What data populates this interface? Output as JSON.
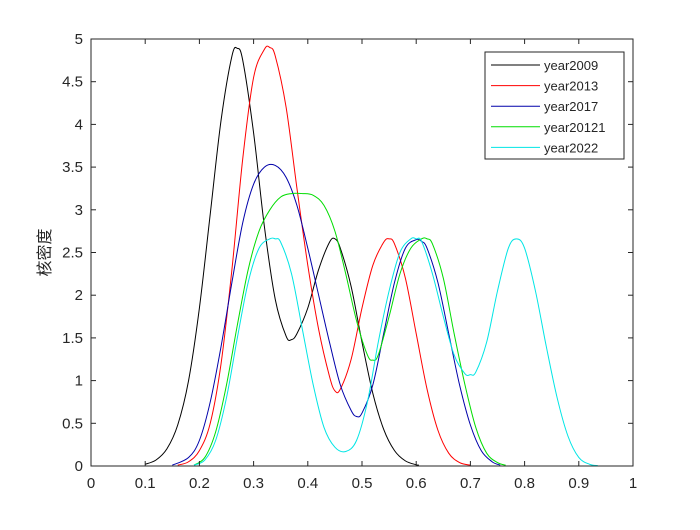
{
  "chart_data": {
    "type": "line",
    "title": "",
    "xlabel": "",
    "ylabel": "核密度",
    "xlim": [
      0,
      1
    ],
    "ylim": [
      0,
      5
    ],
    "xticks": [
      "0",
      "0.1",
      "0.2",
      "0.3",
      "0.4",
      "0.5",
      "0.6",
      "0.7",
      "0.8",
      "0.9",
      "1"
    ],
    "yticks": [
      "0",
      "0.5",
      "1",
      "1.5",
      "2",
      "2.5",
      "3",
      "3.5",
      "4",
      "4.5",
      "5"
    ],
    "grid": false,
    "legend_position": "top-right",
    "series": [
      {
        "name": "year2009",
        "color": "#000000",
        "x": [
          0.1,
          0.12,
          0.14,
          0.16,
          0.18,
          0.2,
          0.22,
          0.24,
          0.26,
          0.27,
          0.28,
          0.3,
          0.32,
          0.34,
          0.36,
          0.37,
          0.38,
          0.4,
          0.42,
          0.44,
          0.45,
          0.46,
          0.48,
          0.5,
          0.52,
          0.54,
          0.56,
          0.58,
          0.6,
          0.605
        ],
        "y": [
          0.02,
          0.07,
          0.2,
          0.48,
          1.0,
          1.85,
          2.95,
          4.05,
          4.8,
          4.89,
          4.75,
          3.9,
          2.8,
          1.95,
          1.52,
          1.48,
          1.55,
          1.85,
          2.3,
          2.62,
          2.66,
          2.55,
          2.1,
          1.45,
          0.85,
          0.43,
          0.18,
          0.06,
          0.015,
          0.01
        ]
      },
      {
        "name": "year2013",
        "color": "#ff0000",
        "x": [
          0.16,
          0.18,
          0.2,
          0.22,
          0.24,
          0.26,
          0.28,
          0.3,
          0.32,
          0.33,
          0.34,
          0.36,
          0.38,
          0.4,
          0.42,
          0.44,
          0.45,
          0.46,
          0.48,
          0.5,
          0.52,
          0.54,
          0.55,
          0.56,
          0.58,
          0.6,
          0.62,
          0.64,
          0.66,
          0.68,
          0.7
        ],
        "y": [
          0.01,
          0.05,
          0.18,
          0.5,
          1.2,
          2.3,
          3.6,
          4.55,
          4.88,
          4.9,
          4.8,
          4.2,
          3.25,
          2.35,
          1.6,
          1.05,
          0.88,
          0.9,
          1.25,
          1.85,
          2.35,
          2.62,
          2.66,
          2.6,
          2.2,
          1.55,
          0.9,
          0.42,
          0.15,
          0.04,
          0.01
        ]
      },
      {
        "name": "year2017",
        "color": "#0000aa",
        "x": [
          0.15,
          0.18,
          0.2,
          0.22,
          0.24,
          0.26,
          0.28,
          0.3,
          0.32,
          0.34,
          0.36,
          0.38,
          0.4,
          0.42,
          0.44,
          0.46,
          0.48,
          0.49,
          0.5,
          0.52,
          0.54,
          0.56,
          0.58,
          0.6,
          0.61,
          0.62,
          0.64,
          0.66,
          0.68,
          0.7,
          0.72,
          0.74,
          0.755
        ],
        "y": [
          0.01,
          0.1,
          0.3,
          0.75,
          1.4,
          2.15,
          2.85,
          3.3,
          3.5,
          3.52,
          3.38,
          3.05,
          2.55,
          2.0,
          1.45,
          0.95,
          0.65,
          0.58,
          0.62,
          0.95,
          1.55,
          2.15,
          2.55,
          2.65,
          2.63,
          2.55,
          2.15,
          1.55,
          0.95,
          0.48,
          0.18,
          0.05,
          0.01
        ]
      },
      {
        "name": "year20121",
        "color": "#00dd00",
        "x": [
          0.19,
          0.21,
          0.23,
          0.25,
          0.27,
          0.29,
          0.31,
          0.33,
          0.35,
          0.37,
          0.39,
          0.41,
          0.43,
          0.45,
          0.47,
          0.49,
          0.51,
          0.52,
          0.53,
          0.55,
          0.57,
          0.59,
          0.61,
          0.62,
          0.63,
          0.65,
          0.67,
          0.69,
          0.71,
          0.73,
          0.75,
          0.765
        ],
        "y": [
          0.01,
          0.1,
          0.4,
          0.95,
          1.65,
          2.3,
          2.75,
          3.0,
          3.15,
          3.19,
          3.19,
          3.17,
          3.05,
          2.75,
          2.25,
          1.7,
          1.3,
          1.24,
          1.3,
          1.75,
          2.25,
          2.55,
          2.66,
          2.66,
          2.6,
          2.2,
          1.55,
          0.95,
          0.45,
          0.15,
          0.04,
          0.01
        ]
      },
      {
        "name": "year2022",
        "color": "#00e5e5",
        "x": [
          0.19,
          0.21,
          0.23,
          0.25,
          0.27,
          0.29,
          0.31,
          0.33,
          0.34,
          0.35,
          0.37,
          0.39,
          0.41,
          0.43,
          0.45,
          0.47,
          0.49,
          0.51,
          0.53,
          0.55,
          0.57,
          0.59,
          0.6,
          0.61,
          0.63,
          0.65,
          0.67,
          0.69,
          0.7,
          0.71,
          0.73,
          0.75,
          0.77,
          0.785,
          0.8,
          0.82,
          0.84,
          0.86,
          0.88,
          0.9,
          0.92,
          0.935
        ],
        "y": [
          0.01,
          0.07,
          0.3,
          0.8,
          1.5,
          2.15,
          2.55,
          2.66,
          2.66,
          2.62,
          2.25,
          1.6,
          0.95,
          0.45,
          0.22,
          0.17,
          0.3,
          0.75,
          1.45,
          2.05,
          2.5,
          2.66,
          2.66,
          2.63,
          2.25,
          1.75,
          1.3,
          1.08,
          1.07,
          1.1,
          1.45,
          2.05,
          2.55,
          2.66,
          2.55,
          2.05,
          1.4,
          0.8,
          0.35,
          0.1,
          0.02,
          0.005
        ]
      }
    ]
  }
}
